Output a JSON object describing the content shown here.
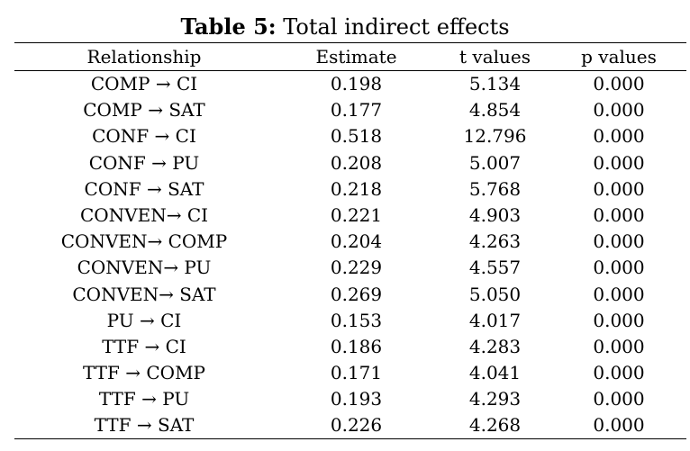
{
  "caption": {
    "label": "Table 5:",
    "text": "Total indirect effects"
  },
  "table": {
    "headers": [
      "Relationship",
      "Estimate",
      "t values",
      "p values"
    ],
    "rows": [
      [
        "COMP → CI",
        "0.198",
        "5.134",
        "0.000"
      ],
      [
        "COMP → SAT",
        "0.177",
        "4.854",
        "0.000"
      ],
      [
        "CONF → CI",
        "0.518",
        "12.796",
        "0.000"
      ],
      [
        "CONF → PU",
        "0.208",
        "5.007",
        "0.000"
      ],
      [
        "CONF → SAT",
        "0.218",
        "5.768",
        "0.000"
      ],
      [
        "CONVEN→ CI",
        "0.221",
        "4.903",
        "0.000"
      ],
      [
        "CONVEN→ COMP",
        "0.204",
        "4.263",
        "0.000"
      ],
      [
        "CONVEN→ PU",
        "0.229",
        "4.557",
        "0.000"
      ],
      [
        "CONVEN→ SAT",
        "0.269",
        "5.050",
        "0.000"
      ],
      [
        "PU → CI",
        "0.153",
        "4.017",
        "0.000"
      ],
      [
        "TTF → CI",
        "0.186",
        "4.283",
        "0.000"
      ],
      [
        "TTF → COMP",
        "0.171",
        "4.041",
        "0.000"
      ],
      [
        "TTF → PU",
        "0.193",
        "4.293",
        "0.000"
      ],
      [
        "TTF → SAT",
        "0.226",
        "4.268",
        "0.000"
      ]
    ]
  }
}
